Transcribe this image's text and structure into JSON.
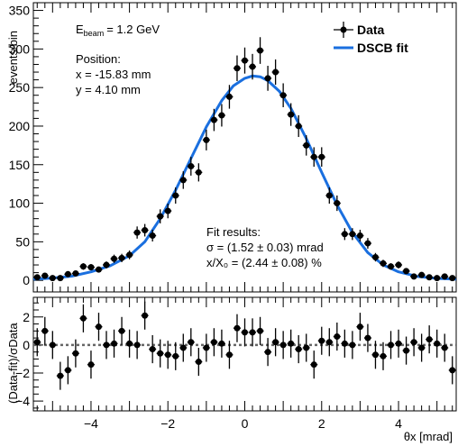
{
  "chart_data": [
    {
      "type": "scatter",
      "xlabel": "θx [mrad]",
      "ylabel": "events/bin",
      "xlim": [
        -5.5,
        5.5
      ],
      "ylim": [
        -15,
        360
      ],
      "y_ticks": [
        0,
        50,
        100,
        150,
        200,
        250,
        300,
        350
      ],
      "grid": false,
      "legend_position": "top-right",
      "legend": [
        {
          "label": "Data",
          "marker": "dot-errorbar",
          "color": "#000000"
        },
        {
          "label": "DSCB fit",
          "marker": "line",
          "color": "#1a6fdf"
        }
      ],
      "annotations": {
        "beam_energy": "= 1.2 GeV",
        "beam_label_main": "E",
        "beam_label_sub": "beam",
        "position_title": "Position:",
        "position_x": "x = -15.83 mm",
        "position_y": "y = 4.10 mm",
        "fit_title": "Fit results:",
        "fit_sigma": "σ = (1.52 ± 0.03) mrad",
        "fit_x0": "x/X₀ = (2.44 ± 0.08) %"
      },
      "series": [
        {
          "name": "Data",
          "x": [
            -5.4,
            -5.2,
            -5.0,
            -4.8,
            -4.6,
            -4.4,
            -4.2,
            -4.0,
            -3.8,
            -3.6,
            -3.4,
            -3.2,
            -3.0,
            -2.8,
            -2.6,
            -2.4,
            -2.2,
            -2.0,
            -1.8,
            -1.6,
            -1.4,
            -1.2,
            -1.0,
            -0.8,
            -0.6,
            -0.4,
            -0.2,
            0.0,
            0.2,
            0.4,
            0.6,
            0.8,
            1.0,
            1.2,
            1.4,
            1.6,
            1.8,
            2.0,
            2.2,
            2.4,
            2.6,
            2.8,
            3.0,
            3.2,
            3.4,
            3.6,
            3.8,
            4.0,
            4.2,
            4.4,
            4.6,
            4.8,
            5.0,
            5.2,
            5.4
          ],
          "y": [
            4,
            6,
            3,
            3,
            8,
            9,
            18,
            17,
            14,
            20,
            28,
            29,
            33,
            62,
            65,
            58,
            83,
            90,
            110,
            130,
            148,
            140,
            182,
            208,
            214,
            238,
            275,
            285,
            277,
            298,
            262,
            270,
            240,
            215,
            200,
            175,
            160,
            160,
            110,
            100,
            60,
            60,
            58,
            48,
            30,
            22,
            18,
            20,
            12,
            5,
            7,
            4,
            3,
            5,
            3
          ],
          "yerr": [
            2,
            2.5,
            2,
            2,
            3,
            3,
            4.2,
            4.1,
            3.7,
            4.5,
            5.3,
            5.4,
            5.7,
            7.9,
            8.1,
            7.6,
            9.1,
            9.5,
            10.5,
            11.4,
            12.2,
            11.8,
            13.5,
            14.4,
            14.6,
            15.4,
            16.6,
            16.9,
            16.6,
            17.3,
            16.2,
            16.4,
            15.5,
            14.7,
            14.1,
            13.2,
            12.6,
            12.6,
            10.5,
            10,
            7.7,
            7.7,
            7.6,
            6.9,
            5.5,
            4.7,
            4.2,
            4.5,
            3.5,
            2.2,
            2.6,
            2,
            2,
            2.2,
            2
          ]
        },
        {
          "name": "DSCB fit",
          "x": [
            -5.5,
            -5.0,
            -4.5,
            -4.0,
            -3.5,
            -3.0,
            -2.6,
            -2.2,
            -1.8,
            -1.4,
            -1.0,
            -0.6,
            -0.3,
            0.0,
            0.2,
            0.4,
            0.6,
            0.9,
            1.2,
            1.6,
            2.0,
            2.4,
            2.8,
            3.2,
            3.6,
            4.0,
            4.5,
            5.0,
            5.5
          ],
          "y": [
            1.5,
            3,
            5.5,
            11,
            19,
            32,
            50,
            80,
            117,
            158,
            199,
            233,
            252,
            262,
            265,
            264,
            259,
            245,
            223,
            184,
            140,
            98,
            62,
            36,
            20,
            11,
            5,
            2.5,
            1.5
          ]
        }
      ]
    },
    {
      "type": "scatter",
      "xlabel": "θx [mrad]",
      "ylabel": "(Data-fit)/σData",
      "xlim": [
        -5.5,
        5.5
      ],
      "ylim": [
        -4.7,
        3.4
      ],
      "y_ticks": [
        -4,
        -2,
        0,
        2
      ],
      "x_ticks": [
        -4,
        -2,
        0,
        2,
        4
      ],
      "reference_line": 0,
      "series": [
        {
          "name": "Residuals",
          "x": [
            -5.4,
            -5.2,
            -5.0,
            -4.8,
            -4.6,
            -4.4,
            -4.2,
            -4.0,
            -3.8,
            -3.6,
            -3.4,
            -3.2,
            -3.0,
            -2.8,
            -2.6,
            -2.4,
            -2.2,
            -2.0,
            -1.8,
            -1.6,
            -1.4,
            -1.2,
            -1.0,
            -0.8,
            -0.6,
            -0.4,
            -0.2,
            0.0,
            0.2,
            0.4,
            0.6,
            0.8,
            1.0,
            1.2,
            1.4,
            1.6,
            1.8,
            2.0,
            2.2,
            2.4,
            2.6,
            2.8,
            3.0,
            3.2,
            3.4,
            3.6,
            3.8,
            4.0,
            4.2,
            4.4,
            4.6,
            4.8,
            5.0,
            5.2,
            5.4
          ],
          "y": [
            0.2,
            1.0,
            0.0,
            -2.2,
            -1.8,
            -0.6,
            1.9,
            -1.4,
            1.3,
            0.0,
            0.1,
            1.0,
            0.1,
            0.0,
            2.1,
            -0.3,
            -0.6,
            -0.7,
            -0.8,
            -0.2,
            0.2,
            -1.2,
            -0.2,
            0.2,
            0.1,
            -0.7,
            1.2,
            0.9,
            0.9,
            1.0,
            -0.5,
            0.2,
            0.0,
            0.1,
            -0.3,
            -0.2,
            -1.4,
            0.3,
            0.2,
            0.6,
            0.1,
            0.0,
            1.3,
            0.5,
            -0.7,
            -0.8,
            0.0,
            0.1,
            -0.4,
            0.2,
            -0.2,
            0.4,
            0.1,
            -0.2,
            -1.8
          ]
        }
      ]
    }
  ]
}
